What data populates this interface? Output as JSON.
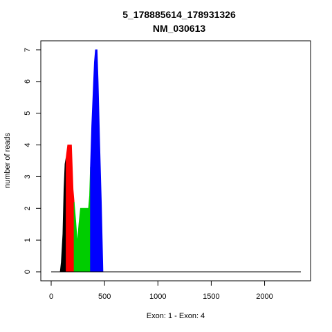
{
  "chart_data": {
    "type": "area",
    "title": "5_178885614_178931326",
    "subtitle": "NM_030613",
    "xlabel": "Exon: 1 - Exon: 4",
    "ylabel": "number of reads",
    "xlim": [
      0,
      2340
    ],
    "ylim": [
      0,
      7
    ],
    "xticks": [
      0,
      500,
      1000,
      1500,
      2000
    ],
    "yticks": [
      0,
      1,
      2,
      3,
      4,
      5,
      6,
      7
    ],
    "grid": false,
    "colors": {
      "exon1": "#000000",
      "exon2": "#ff0000",
      "exon3": "#00cd00",
      "exon4": "#0000ff",
      "baseline": "#000000"
    },
    "series": [
      {
        "x": [
          70,
          85,
          95,
          110,
          120,
          130,
          140
        ],
        "y": [
          0,
          0,
          0.3,
          1.2,
          2.6,
          3.4,
          3.6
        ]
      },
      {
        "x": [
          140,
          155,
          170,
          190,
          205,
          215
        ],
        "y": [
          3.6,
          4,
          4,
          4,
          2.6,
          2.2
        ]
      },
      {
        "x": [
          215,
          230,
          245,
          260,
          275,
          295,
          315,
          335,
          350,
          360,
          368
        ],
        "y": [
          2.2,
          1.6,
          0.9,
          1.5,
          2,
          2,
          2,
          2,
          2,
          2.4,
          3.3
        ]
      },
      {
        "x": [
          368,
          380,
          395,
          405,
          415,
          430,
          440,
          455,
          470,
          485,
          2340
        ],
        "y": [
          3.3,
          4.6,
          5.8,
          6.6,
          7,
          7,
          6,
          4,
          2.2,
          0,
          0
        ]
      }
    ]
  }
}
